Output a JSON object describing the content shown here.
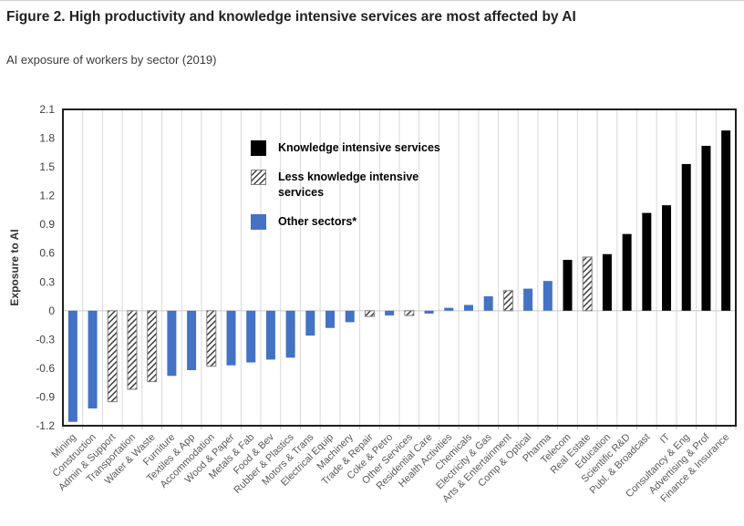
{
  "figure": {
    "title": "Figure 2. High productivity and knowledge intensive services are most affected by AI",
    "subtitle": "AI exposure of workers by sector (2019)"
  },
  "chart_data": {
    "type": "bar",
    "title": "Figure 2. High productivity and knowledge intensive services are most affected by AI",
    "subtitle": "AI exposure of workers by sector (2019)",
    "xlabel": "",
    "ylabel": "Exposure to AI",
    "ylim": [
      -1.2,
      2.1
    ],
    "ytick_step": 0.3,
    "yticks": [
      "2.1",
      "1.8",
      "1.5",
      "1.2",
      "0.9",
      "0.6",
      "0.3",
      "0",
      "-0.3",
      "-0.6",
      "-0.9",
      "-1.2"
    ],
    "grid": "vertical-category-gridlines",
    "legend_position": "inside-top-left",
    "legend": [
      {
        "label": "Knowledge intensive services",
        "style": "solid-black",
        "group": "kis"
      },
      {
        "label": "Less knowledge intensive services",
        "style": "hatched",
        "group": "lkis"
      },
      {
        "label": "Other sectors*",
        "style": "solid-blue",
        "group": "other"
      }
    ],
    "colors": {
      "knowledge_intensive": "#000000",
      "less_knowledge_intensive_fill": "#ffffff",
      "less_knowledge_intensive_hatch": "#3d3d3d",
      "less_knowledge_intensive_border": "#7f7f7f",
      "other_sectors": "#4472C4",
      "gridline": "#d9d9d9",
      "axis_border": "#1f1f1f",
      "tick_label": "#404040",
      "x_label": "#595959"
    },
    "categories": [
      "Mining",
      "Construction",
      "Admin & Support",
      "Transportation",
      "Water & Waste",
      "Furniture",
      "Textiles & App",
      "Accommodation",
      "Wood & Paper",
      "Metals & Fab",
      "Food & Bev",
      "Rubber & Plastics",
      "Motors & Trans",
      "Electrical Equip",
      "Machinery",
      "Trade & Repair",
      "Coke & Petro",
      "Other Services",
      "Residential Care",
      "Health Activities",
      "Chemicals",
      "Electricity & Gas",
      "Arts & Entertainment",
      "Comp & Optical",
      "Pharma",
      "Telecom",
      "Real Estate",
      "Education",
      "Scientific R&D",
      "Publ. & Broadcast",
      "IT",
      "Consultancy & Eng",
      "Advertising & Prof",
      "Finance & Insurance"
    ],
    "values": [
      -1.16,
      -1.02,
      -0.95,
      -0.82,
      -0.74,
      -0.68,
      -0.62,
      -0.58,
      -0.57,
      -0.54,
      -0.51,
      -0.49,
      -0.26,
      -0.18,
      -0.12,
      -0.06,
      -0.05,
      -0.05,
      -0.03,
      0.03,
      0.06,
      0.15,
      0.21,
      0.23,
      0.31,
      0.53,
      0.56,
      0.59,
      0.8,
      1.02,
      1.1,
      1.53,
      1.72,
      1.88
    ],
    "groups": [
      "other",
      "other",
      "lkis",
      "lkis",
      "lkis",
      "other",
      "other",
      "lkis",
      "other",
      "other",
      "other",
      "other",
      "other",
      "other",
      "other",
      "lkis",
      "other",
      "lkis",
      "other",
      "other",
      "other",
      "other",
      "lkis",
      "other",
      "other",
      "kis",
      "lkis",
      "kis",
      "kis",
      "kis",
      "kis",
      "kis",
      "kis",
      "kis"
    ]
  }
}
